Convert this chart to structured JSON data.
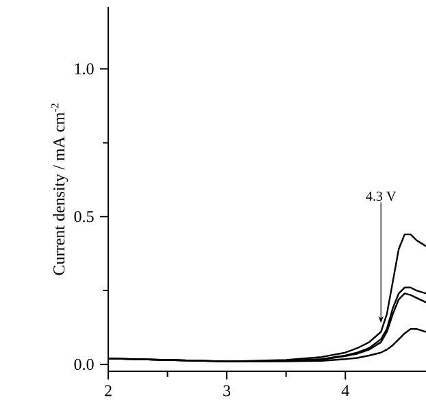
{
  "chart_data": {
    "type": "line",
    "ylabel": "Current density / mA cm$^{-2}$",
    "xlim": [
      2,
      4.68
    ],
    "ylim": [
      -0.023,
      1.21
    ],
    "xticks": [
      2,
      3,
      4
    ],
    "yticks": [
      {
        "value": 0,
        "label": "0.0"
      },
      {
        "value": 0.5,
        "label": "0.5"
      },
      {
        "value": 1.0,
        "label": "1.0"
      }
    ],
    "grid": false,
    "marker": "none",
    "line_style": "solid",
    "annotations": [
      {
        "text": "4.3 V",
        "x": 4.3,
        "y": 0.14
      }
    ],
    "series": [
      {
        "color": "#000000",
        "x": [
          2,
          2.5,
          3,
          3.5,
          3.8,
          4.0,
          4.1,
          4.2,
          4.3,
          4.35,
          4.4,
          4.45,
          4.5,
          4.55,
          4.6,
          4.68
        ],
        "values": [
          0.02,
          0.015,
          0.01,
          0.015,
          0.025,
          0.04,
          0.055,
          0.075,
          0.11,
          0.17,
          0.28,
          0.39,
          0.44,
          0.44,
          0.42,
          0.4
        ]
      },
      {
        "color": "#000000",
        "x": [
          2,
          2.5,
          3,
          3.5,
          3.8,
          4.0,
          4.1,
          4.2,
          4.3,
          4.35,
          4.4,
          4.45,
          4.5,
          4.55,
          4.6,
          4.68
        ],
        "values": [
          0.02,
          0.015,
          0.01,
          0.012,
          0.018,
          0.03,
          0.04,
          0.055,
          0.085,
          0.12,
          0.19,
          0.24,
          0.26,
          0.26,
          0.25,
          0.24
        ]
      },
      {
        "color": "#000000",
        "x": [
          2,
          2.5,
          3,
          3.5,
          3.8,
          4.0,
          4.1,
          4.2,
          4.3,
          4.35,
          4.4,
          4.45,
          4.5,
          4.55,
          4.6,
          4.68
        ],
        "values": [
          0.02,
          0.015,
          0.01,
          0.012,
          0.016,
          0.028,
          0.036,
          0.05,
          0.075,
          0.11,
          0.17,
          0.22,
          0.24,
          0.235,
          0.225,
          0.21
        ]
      },
      {
        "color": "#000000",
        "x": [
          2,
          2.5,
          3,
          3.5,
          3.8,
          4.0,
          4.1,
          4.2,
          4.3,
          4.35,
          4.4,
          4.45,
          4.5,
          4.55,
          4.6,
          4.68
        ],
        "values": [
          0.02,
          0.015,
          0.01,
          0.01,
          0.012,
          0.018,
          0.022,
          0.03,
          0.04,
          0.05,
          0.065,
          0.085,
          0.105,
          0.12,
          0.12,
          0.11
        ]
      }
    ]
  }
}
